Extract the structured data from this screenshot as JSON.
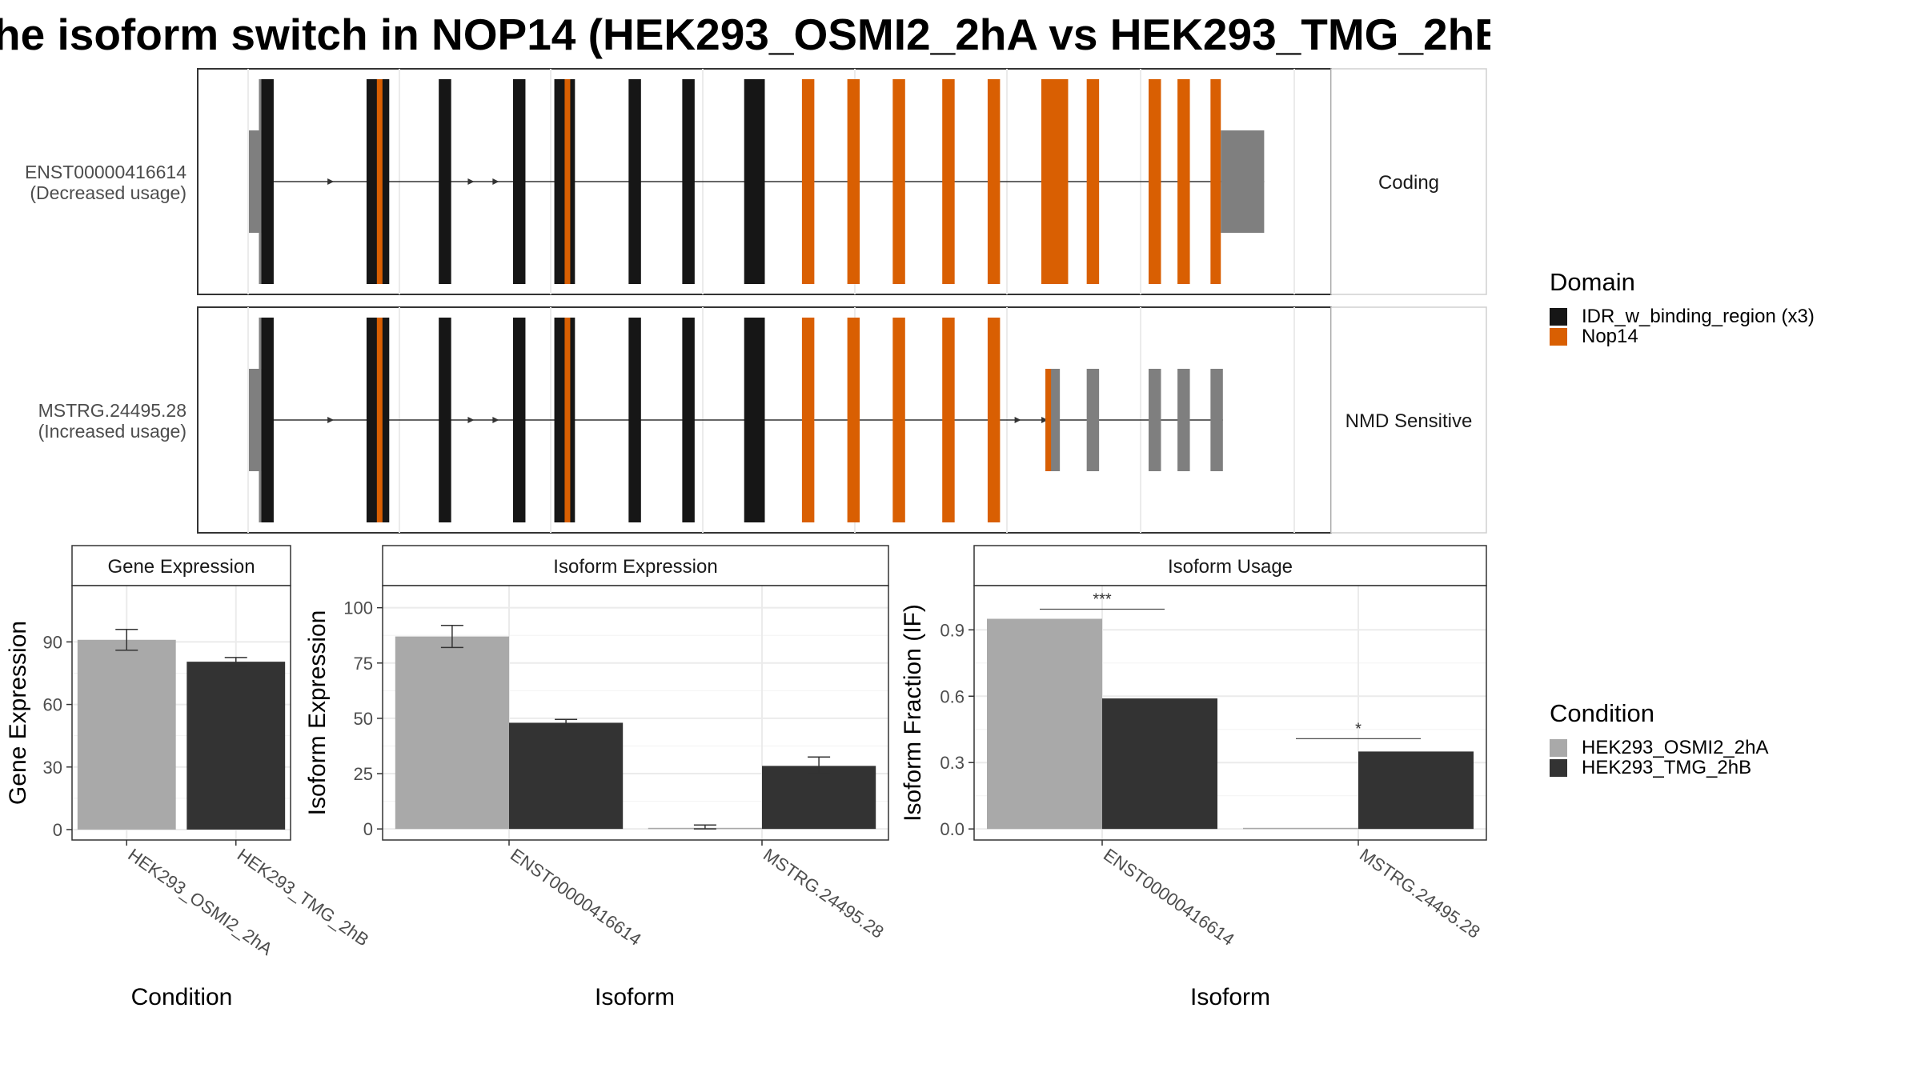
{
  "title": "he isoform switch in NOP14 (HEK293_OSMI2_2hA vs HEK293_TMG_2hB",
  "colors": {
    "idr": "#161616",
    "nop14": "#d95f02",
    "utr": "#7f7f7f",
    "cond_a": "#a9a9a9",
    "cond_b": "#333333"
  },
  "transcripts": [
    {
      "id": "ENST00000416614",
      "usage": "(Decreased usage)",
      "strip": "Coding",
      "exons": [
        {
          "start": 0,
          "end": 6,
          "type": "utr"
        },
        {
          "start": 6,
          "end": 12,
          "type": "idr"
        },
        {
          "start": 57,
          "end": 68,
          "type": "idr",
          "stripe": 62
        },
        {
          "start": 92,
          "end": 98,
          "type": "idr"
        },
        {
          "start": 128,
          "end": 134,
          "type": "idr"
        },
        {
          "start": 148,
          "end": 158,
          "type": "idr",
          "stripe": 153
        },
        {
          "start": 184,
          "end": 190,
          "type": "idr"
        },
        {
          "start": 210,
          "end": 216,
          "type": "idr"
        },
        {
          "start": 240,
          "end": 250,
          "type": "idr"
        },
        {
          "start": 268,
          "end": 274,
          "type": "nop14"
        },
        {
          "start": 290,
          "end": 296,
          "type": "nop14"
        },
        {
          "start": 312,
          "end": 318,
          "type": "nop14"
        },
        {
          "start": 336,
          "end": 342,
          "type": "nop14"
        },
        {
          "start": 358,
          "end": 364,
          "type": "nop14"
        },
        {
          "start": 384,
          "end": 397,
          "type": "nop14"
        },
        {
          "start": 406,
          "end": 412,
          "type": "nop14"
        },
        {
          "start": 436,
          "end": 442,
          "type": "nop14"
        },
        {
          "start": 450,
          "end": 456,
          "type": "nop14"
        },
        {
          "start": 466,
          "end": 471,
          "type": "nop14"
        },
        {
          "start": 471,
          "end": 492,
          "type": "utr"
        }
      ],
      "arrows": [
        40,
        60,
        108,
        120
      ]
    },
    {
      "id": "MSTRG.24495.28",
      "usage": "(Increased usage)",
      "strip": "NMD Sensitive",
      "exons": [
        {
          "start": 0,
          "end": 6,
          "type": "utr"
        },
        {
          "start": 6,
          "end": 12,
          "type": "idr"
        },
        {
          "start": 57,
          "end": 68,
          "type": "idr",
          "stripe": 62
        },
        {
          "start": 92,
          "end": 98,
          "type": "idr"
        },
        {
          "start": 128,
          "end": 134,
          "type": "idr"
        },
        {
          "start": 148,
          "end": 158,
          "type": "idr",
          "stripe": 153
        },
        {
          "start": 184,
          "end": 190,
          "type": "idr"
        },
        {
          "start": 210,
          "end": 216,
          "type": "idr"
        },
        {
          "start": 240,
          "end": 250,
          "type": "idr"
        },
        {
          "start": 268,
          "end": 274,
          "type": "nop14"
        },
        {
          "start": 290,
          "end": 296,
          "type": "nop14"
        },
        {
          "start": 312,
          "end": 318,
          "type": "nop14"
        },
        {
          "start": 336,
          "end": 342,
          "type": "nop14"
        },
        {
          "start": 358,
          "end": 364,
          "type": "nop14"
        },
        {
          "start": 386,
          "end": 393,
          "type": "utr",
          "stripe": 386
        },
        {
          "start": 406,
          "end": 412,
          "type": "utr"
        },
        {
          "start": 436,
          "end": 442,
          "type": "utr"
        },
        {
          "start": 450,
          "end": 456,
          "type": "utr"
        },
        {
          "start": 466,
          "end": 472,
          "type": "utr"
        }
      ],
      "arrows": [
        40,
        60,
        108,
        120,
        373,
        386
      ]
    }
  ],
  "domain_legend": {
    "title": "Domain",
    "items": [
      {
        "label": "IDR_w_binding_region (x3)",
        "color": "#161616"
      },
      {
        "label": "Nop14",
        "color": "#d95f02"
      }
    ]
  },
  "condition_legend": {
    "title": "Condition",
    "items": [
      {
        "label": "HEK293_OSMI2_2hA",
        "color": "#a9a9a9"
      },
      {
        "label": "HEK293_TMG_2hB",
        "color": "#333333"
      }
    ]
  },
  "chart_data": [
    {
      "type": "bar",
      "title": "Gene Expression",
      "xlabel": "Condition",
      "ylabel": "Gene Expression",
      "categories": [
        "HEK293_OSMI2_2hA",
        "HEK293_TMG_2hB"
      ],
      "values": [
        91,
        80.5
      ],
      "errors": [
        [
          86,
          96
        ],
        [
          78.5,
          82.5
        ]
      ],
      "ylim": [
        -5,
        117
      ],
      "yticks": [
        0,
        30,
        60,
        90
      ]
    },
    {
      "type": "bar",
      "title": "Isoform Expression",
      "xlabel": "Isoform",
      "ylabel": "Isoform Expression",
      "categories": [
        "ENST00000416614",
        "MSTRG.24495.28"
      ],
      "series": [
        {
          "name": "HEK293_OSMI2_2hA",
          "values": [
            87,
            0.5
          ],
          "errors": [
            [
              82,
              92
            ],
            [
              0,
              1.8
            ]
          ]
        },
        {
          "name": "HEK293_TMG_2hB",
          "values": [
            48,
            28.5
          ],
          "errors": [
            [
              46.5,
              49.5
            ],
            [
              25,
              32.5
            ]
          ]
        }
      ],
      "ylim": [
        -5,
        110
      ],
      "yticks": [
        0,
        25,
        50,
        75,
        100
      ]
    },
    {
      "type": "bar",
      "title": "Isoform Usage",
      "xlabel": "Isoform",
      "ylabel": "Isoform Fraction (IF)",
      "categories": [
        "ENST00000416614",
        "MSTRG.24495.28"
      ],
      "series": [
        {
          "name": "HEK293_OSMI2_2hA",
          "values": [
            0.95,
            0.005
          ]
        },
        {
          "name": "HEK293_TMG_2hB",
          "values": [
            0.59,
            0.35
          ]
        }
      ],
      "significance": [
        "***",
        "*"
      ],
      "ylim": [
        -0.05,
        1.1
      ],
      "yticks": [
        0.0,
        0.3,
        0.6,
        0.9
      ]
    }
  ]
}
